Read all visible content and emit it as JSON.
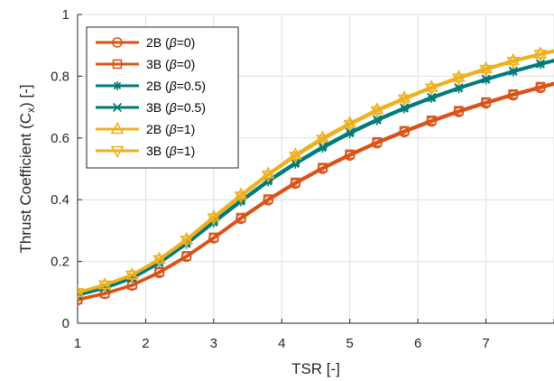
{
  "chart_data": {
    "type": "line",
    "xlabel": "TSR [-]",
    "ylabel_main": "Thrust Coefficient (C",
    "ylabel_sub": "x",
    "ylabel_tail": ") [-]",
    "xlim": [
      1,
      8
    ],
    "ylim": [
      0,
      1
    ],
    "xticks": [
      1,
      2,
      3,
      4,
      5,
      6,
      7,
      8
    ],
    "yticks": [
      0,
      0.2,
      0.4,
      0.6,
      0.8,
      1
    ],
    "ytick_labels": [
      "0",
      "0.2",
      "0.4",
      "0.6",
      "0.8",
      "1"
    ],
    "grid": true,
    "legend_position": "top-left",
    "x": [
      1.0,
      1.4,
      1.8,
      2.2,
      2.6,
      3.0,
      3.4,
      3.8,
      4.2,
      4.6,
      5.0,
      5.4,
      5.8,
      6.2,
      6.6,
      7.0,
      7.4,
      7.8,
      8.2
    ],
    "series": [
      {
        "name": "2B (",
        "beta": "β",
        "param": "=0)",
        "color": "#D95319",
        "marker": "circle",
        "values": [
          0.075,
          0.095,
          0.122,
          0.163,
          0.215,
          0.275,
          0.338,
          0.398,
          0.452,
          0.5,
          0.543,
          0.583,
          0.619,
          0.653,
          0.684,
          0.712,
          0.738,
          0.762,
          0.785
        ]
      },
      {
        "name": "3B (",
        "beta": "β",
        "param": "=0)",
        "color": "#D95319",
        "marker": "square",
        "values": [
          0.077,
          0.097,
          0.124,
          0.166,
          0.218,
          0.278,
          0.342,
          0.402,
          0.456,
          0.504,
          0.547,
          0.587,
          0.623,
          0.657,
          0.688,
          0.716,
          0.742,
          0.766,
          0.789
        ]
      },
      {
        "name": "2B (",
        "beta": "β",
        "param": "=0.5)",
        "color": "#007A7A",
        "marker": "asterisk",
        "values": [
          0.09,
          0.113,
          0.145,
          0.194,
          0.256,
          0.325,
          0.393,
          0.458,
          0.515,
          0.567,
          0.614,
          0.656,
          0.694,
          0.728,
          0.76,
          0.788,
          0.814,
          0.838,
          0.86
        ]
      },
      {
        "name": "3B (",
        "beta": "β",
        "param": "=0.5)",
        "color": "#007A7A",
        "marker": "cross",
        "values": [
          0.091,
          0.115,
          0.148,
          0.197,
          0.26,
          0.33,
          0.398,
          0.463,
          0.52,
          0.572,
          0.619,
          0.66,
          0.698,
          0.732,
          0.763,
          0.791,
          0.817,
          0.841,
          0.863
        ]
      },
      {
        "name": "2B (",
        "beta": "β",
        "param": "=1)",
        "color": "#EDB120",
        "marker": "triangle-up",
        "values": [
          0.1,
          0.125,
          0.157,
          0.208,
          0.272,
          0.345,
          0.416,
          0.484,
          0.546,
          0.601,
          0.648,
          0.692,
          0.73,
          0.765,
          0.797,
          0.825,
          0.851,
          0.873,
          0.893
        ]
      },
      {
        "name": "3B (",
        "beta": "β",
        "param": "=1)",
        "color": "#EDB120",
        "marker": "triangle-down",
        "values": [
          0.098,
          0.123,
          0.155,
          0.205,
          0.268,
          0.34,
          0.411,
          0.479,
          0.54,
          0.595,
          0.643,
          0.687,
          0.725,
          0.761,
          0.793,
          0.821,
          0.847,
          0.87,
          0.89
        ]
      }
    ]
  }
}
